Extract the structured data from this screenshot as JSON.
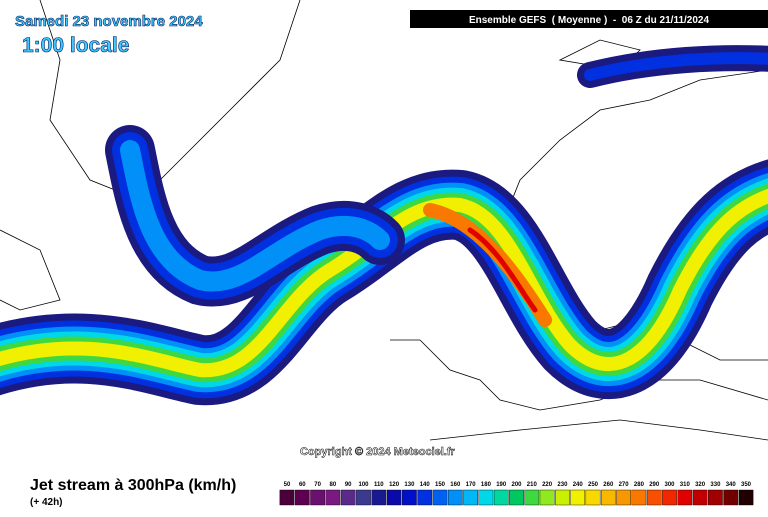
{
  "header": {
    "date": "Samedi 23 novembre 2024",
    "time": "1:00 locale",
    "model": "Ensemble GEFS  ( Moyenne )  -  06 Z du 21/11/2024"
  },
  "copyright": "Copyright © 2024 Meteociel.fr",
  "footer": {
    "title": "Jet stream à 300hPa (km/h)",
    "lead": "(+ 42h)"
  },
  "legend": {
    "values": [
      50,
      60,
      70,
      80,
      90,
      100,
      110,
      120,
      130,
      140,
      150,
      160,
      170,
      180,
      190,
      200,
      210,
      220,
      230,
      240,
      250,
      260,
      270,
      280,
      290,
      300,
      310,
      320,
      330,
      340,
      350
    ],
    "colors": [
      "#4a003a",
      "#5e0050",
      "#6c1070",
      "#7a1a80",
      "#5a2a8a",
      "#3a3a90",
      "#1a1a90",
      "#0a0aa8",
      "#0010c8",
      "#0030e0",
      "#0060f0",
      "#0090f8",
      "#00b8f8",
      "#00d8e8",
      "#00d8a0",
      "#00c860",
      "#40d840",
      "#90e820",
      "#c8f000",
      "#f0f000",
      "#f8d800",
      "#f8b800",
      "#f89800",
      "#f87800",
      "#f85000",
      "#f02800",
      "#e00000",
      "#c00000",
      "#a00000",
      "#700000",
      "#200000"
    ]
  }
}
